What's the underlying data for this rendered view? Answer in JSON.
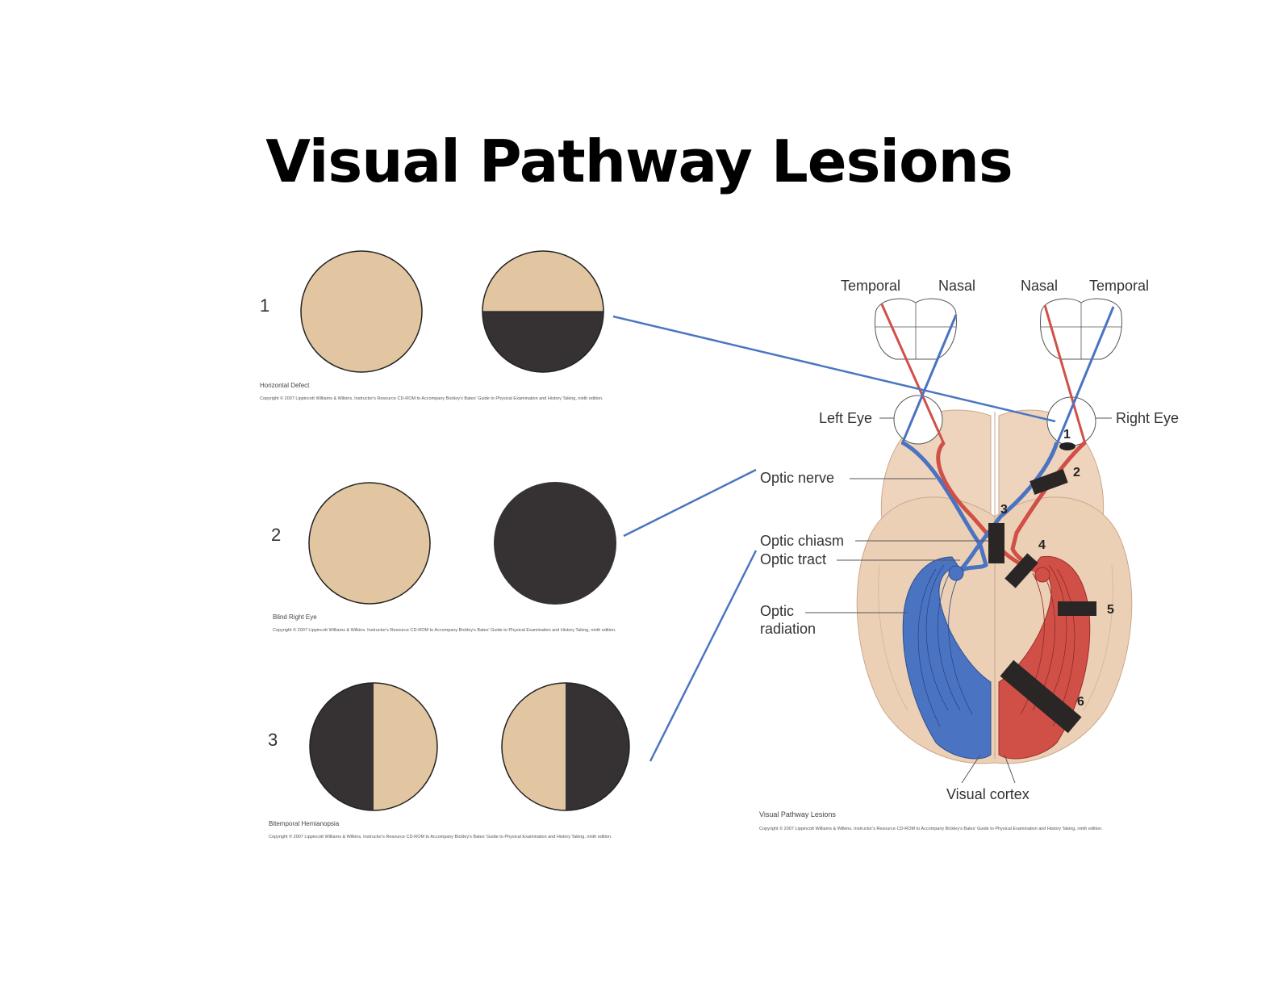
{
  "title": "Visual Pathway Lesions",
  "colors": {
    "field_normal": "#e2c6a1",
    "field_blind": "#363233",
    "left_path": "#4a73c2",
    "right_path": "#d05048",
    "connector": "#4a76c0"
  },
  "examples": [
    {
      "number": "1",
      "caption": "Horizontal Defect",
      "left_field": "full",
      "right_field": "lower-half-blind",
      "copyright": "Copyright © 2007 Lippincott Williams & Wilkins. Instructor's Resource CD-ROM to Accompany Bickley's Bates' Guide to Physical Examination and History Taking, ninth edition."
    },
    {
      "number": "2",
      "caption": "Blind Right Eye",
      "left_field": "full",
      "right_field": "fully-blind",
      "copyright": "Copyright © 2007 Lippincott Williams & Wilkins. Instructor's Resource CD-ROM to Accompany Bickley's Bates' Guide to Physical Examination and History Taking, ninth edition."
    },
    {
      "number": "3",
      "caption": "Bitemporal Hemianopsia",
      "left_field": "left-half-blind",
      "right_field": "right-half-blind",
      "copyright": "Copyright © 2007 Lippincott Williams & Wilkins. Instructor's Resource CD-ROM to Accompany Bickley's Bates' Guide to Physical Examination and History Taking, ninth edition."
    }
  ],
  "diagram": {
    "field_labels": [
      "Temporal",
      "Nasal",
      "Nasal",
      "Temporal"
    ],
    "left_eye": "Left Eye",
    "right_eye": "Right Eye",
    "optic_nerve": "Optic nerve",
    "optic_chiasm": "Optic chiasm",
    "optic_tract": "Optic tract",
    "optic_radiation_1": "Optic",
    "optic_radiation_2": "radiation",
    "visual_cortex": "Visual cortex",
    "lesion_numbers": [
      "1",
      "2",
      "3",
      "4",
      "5",
      "6"
    ],
    "caption": "Visual Pathway Lesions",
    "copyright": "Copyright © 2007 Lippincott Williams & Wilkins. Instructor's Resource CD-ROM to Accompany Bickley's Bates' Guide to Physical Examination and History Taking, ninth edition."
  }
}
